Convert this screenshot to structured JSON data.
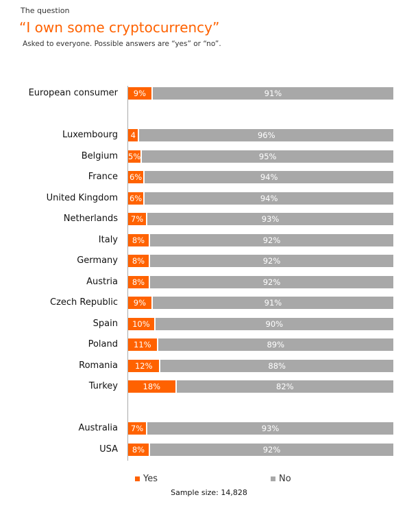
{
  "header": {
    "kicker": "The question",
    "title": "“I own some cryptocurrency”",
    "subtitle": "Asked to everyone. Possible answers are “yes” or “no”."
  },
  "chart_data": {
    "type": "bar",
    "orientation": "horizontal-stacked",
    "categories": [
      "European consumer",
      "Luxembourg",
      "Belgium",
      "France",
      "United Kingdom",
      "Netherlands",
      "Italy",
      "Germany",
      "Austria",
      "Czech Republic",
      "Spain",
      "Poland",
      "Romania",
      "Turkey",
      "Australia",
      "USA"
    ],
    "groups": [
      0,
      1,
      1,
      1,
      1,
      1,
      1,
      1,
      1,
      1,
      1,
      1,
      1,
      1,
      2,
      2
    ],
    "series": [
      {
        "name": "Yes",
        "color": "#ff6200",
        "values": [
          9,
          4,
          5,
          6,
          6,
          7,
          8,
          8,
          8,
          9,
          10,
          11,
          12,
          18,
          7,
          8
        ],
        "labels": [
          "9%",
          "4",
          "5%",
          "6%",
          "6%",
          "7%",
          "8%",
          "8%",
          "8%",
          "9%",
          "10%",
          "11%",
          "12%",
          "18%",
          "7%",
          "8%"
        ]
      },
      {
        "name": "No",
        "color": "#a8a8a8",
        "values": [
          91,
          96,
          95,
          94,
          94,
          93,
          92,
          92,
          92,
          91,
          90,
          89,
          88,
          82,
          93,
          92
        ],
        "labels": [
          "91%",
          "96%",
          "95%",
          "94%",
          "94%",
          "93%",
          "92%",
          "92%",
          "92%",
          "91%",
          "90%",
          "89%",
          "88%",
          "82%",
          "93%",
          "92%"
        ]
      }
    ],
    "xlim": [
      0,
      100
    ],
    "legend_position": "bottom",
    "sample_size": "Sample size: 14,828"
  }
}
